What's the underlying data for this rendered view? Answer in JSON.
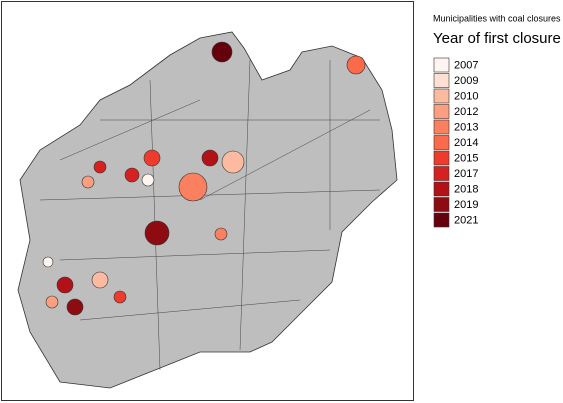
{
  "legend": {
    "subtitle": "Municipalities with coal closures",
    "title": "Year of first closure",
    "items": [
      {
        "label": "2007",
        "color": "#fff5f0"
      },
      {
        "label": "2009",
        "color": "#fee0d2"
      },
      {
        "label": "2010",
        "color": "#fcbba1"
      },
      {
        "label": "2012",
        "color": "#fc9f81"
      },
      {
        "label": "2013",
        "color": "#fb8060"
      },
      {
        "label": "2014",
        "color": "#fb6a4a"
      },
      {
        "label": "2015",
        "color": "#ef3b2c"
      },
      {
        "label": "2017",
        "color": "#d52221"
      },
      {
        "label": "2018",
        "color": "#b11117"
      },
      {
        "label": "2019",
        "color": "#8e0b12"
      },
      {
        "label": "2021",
        "color": "#67000d"
      }
    ]
  }
}
